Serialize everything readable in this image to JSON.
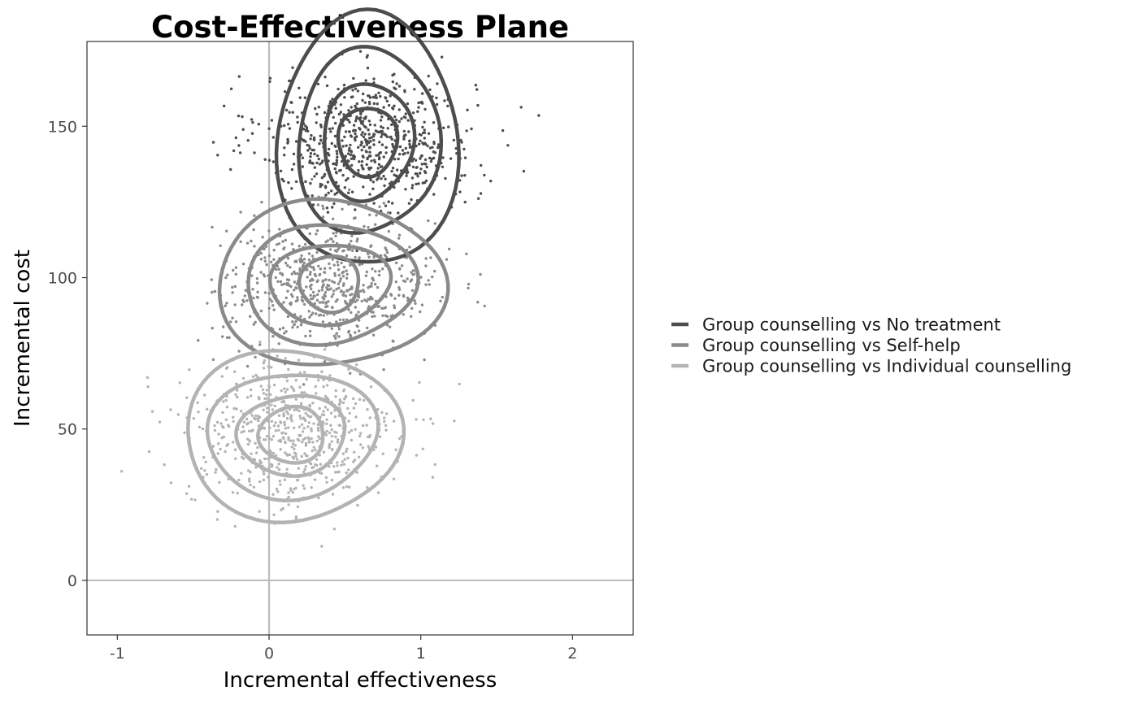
{
  "chart_data": {
    "type": "scatter",
    "title": "Cost-Effectiveness Plane",
    "xlabel": "Incremental effectiveness",
    "ylabel": "Incremental cost",
    "xlim": [
      -1.2,
      2.4
    ],
    "ylim": [
      -18,
      178
    ],
    "x_ticks": [
      -1,
      0,
      1,
      2
    ],
    "x_tick_labels": [
      "-1",
      "0",
      "1",
      "2"
    ],
    "y_ticks": [
      0,
      50,
      100,
      150
    ],
    "y_tick_labels": [
      "0",
      "50",
      "100",
      "150"
    ],
    "reference_lines": {
      "x": 0,
      "y": 0
    },
    "grid": false,
    "legend_position": "right",
    "series": [
      {
        "name": "Group counselling vs No treatment",
        "color": "#4d4d4d",
        "center": [
          0.65,
          145
        ],
        "sd": [
          0.35,
          11
        ],
        "n_points": 700,
        "contour_levels": [
          {
            "rx": 0.58,
            "ry": 43
          },
          {
            "rx": 0.46,
            "ry": 31
          },
          {
            "rx": 0.3,
            "ry": 19
          },
          {
            "rx": 0.2,
            "ry": 11
          }
        ]
      },
      {
        "name": "Group counselling vs Self-help",
        "color": "#8a8a8a",
        "center": [
          0.4,
          98
        ],
        "sd": [
          0.35,
          11
        ],
        "n_points": 650,
        "contour_levels": [
          {
            "rx": 0.73,
            "ry": 28
          },
          {
            "rx": 0.55,
            "ry": 20
          },
          {
            "rx": 0.4,
            "ry": 13
          },
          {
            "rx": 0.2,
            "ry": 9
          }
        ]
      },
      {
        "name": "Group counselling vs Individual counselling",
        "color": "#b3b3b3",
        "center": [
          0.15,
          48
        ],
        "sd": [
          0.35,
          12
        ],
        "n_points": 650,
        "contour_levels": [
          {
            "rx": 0.69,
            "ry": 29
          },
          {
            "rx": 0.55,
            "ry": 21
          },
          {
            "rx": 0.36,
            "ry": 13
          },
          {
            "rx": 0.22,
            "ry": 9
          }
        ]
      }
    ]
  }
}
